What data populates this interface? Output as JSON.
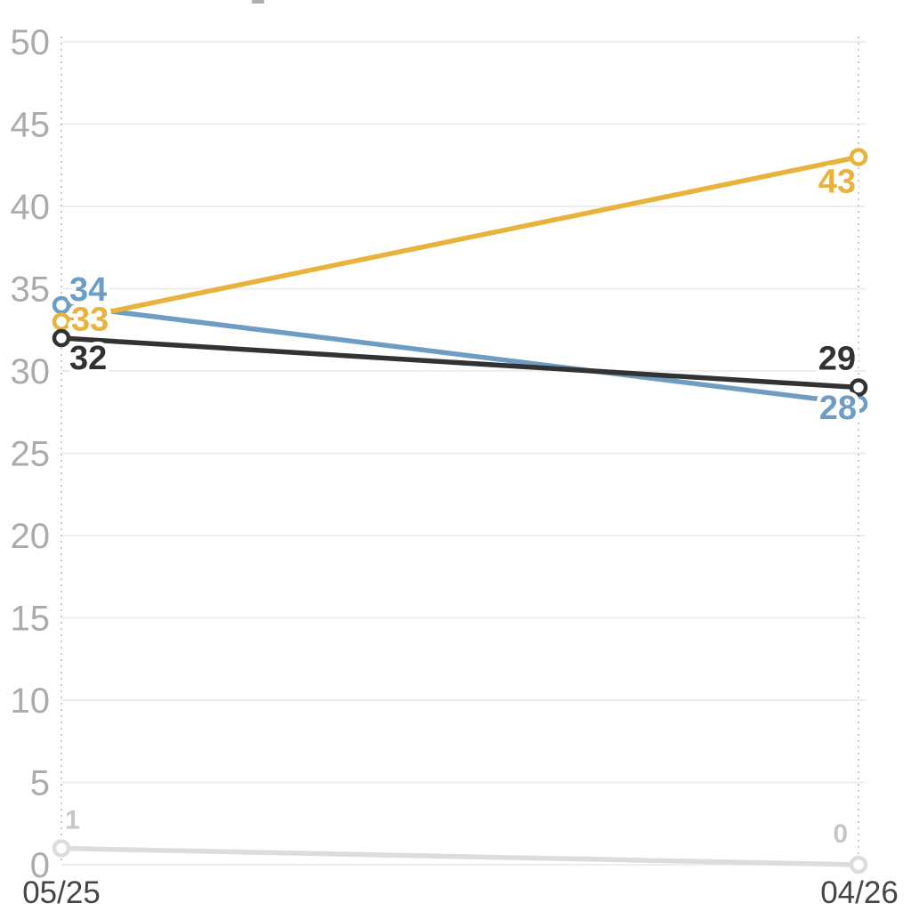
{
  "figure": {
    "has_cropped_title_fragment": true
  },
  "chart_data": {
    "type": "line",
    "title": "",
    "xlabel": "",
    "ylabel": "",
    "x": [
      "05/25",
      "04/26"
    ],
    "ylim": [
      0,
      50
    ],
    "y_tick_step": 5,
    "y_tick_labels": [
      "0",
      "5",
      "10",
      "15",
      "20",
      "25",
      "30",
      "35",
      "40",
      "45",
      "50"
    ],
    "grid": true,
    "legend": "none",
    "series": [
      {
        "name": "light-gray-series",
        "color": "#dcdcdc",
        "label_color": "#c6c6c6",
        "values": [
          1,
          0
        ],
        "point_labels": [
          "1",
          "0"
        ]
      },
      {
        "name": "blue-series",
        "color": "#6e9cc2",
        "label_color": "#6e9cc2",
        "values": [
          34,
          28
        ],
        "point_labels": [
          "34",
          "28"
        ]
      },
      {
        "name": "yellow-series",
        "color": "#e8b33d",
        "label_color": "#e8b33d",
        "values": [
          33,
          43
        ],
        "point_labels": [
          "33",
          "43"
        ]
      },
      {
        "name": "dark-series",
        "color": "#323232",
        "label_color": "#323232",
        "values": [
          32,
          29
        ],
        "point_labels": [
          "32",
          "29"
        ]
      }
    ],
    "colors": {
      "background": "#ffffff",
      "gridline": "#ededed",
      "guide_line": "#c8c8c8",
      "y_axis_text": "#ababab",
      "x_axis_text": "#454545",
      "marker_fill": "#ffffff"
    }
  }
}
